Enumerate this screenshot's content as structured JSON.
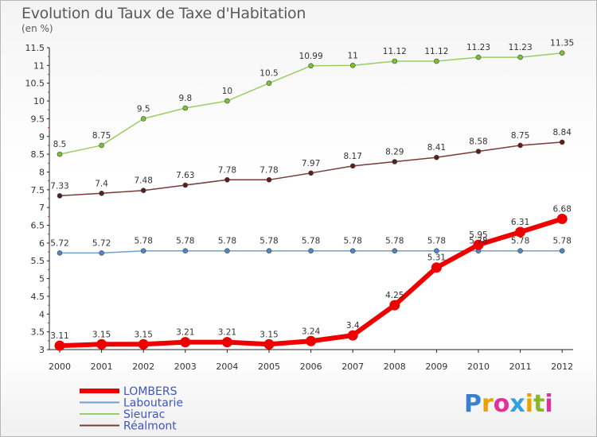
{
  "title": "Evolution du Taux de Taxe d'Habitation",
  "unit": "(en %)",
  "brand": "Proxiti",
  "chart_data": {
    "type": "line",
    "x": [
      "2000",
      "2001",
      "2002",
      "2003",
      "2004",
      "2005",
      "2006",
      "2007",
      "2008",
      "2009",
      "2010",
      "2011",
      "2012"
    ],
    "y_ticks": [
      "3",
      "3.5",
      "4",
      "4.5",
      "5",
      "5.5",
      "6",
      "6.5",
      "7",
      "7.5",
      "8",
      "8.5",
      "9",
      "9.5",
      "10",
      "10.5",
      "11",
      "11.5"
    ],
    "ylim": [
      3,
      11.5
    ],
    "grid": false,
    "legend_position": "bottom-left",
    "series": [
      {
        "name": "Sieurac",
        "color": "#9acd62",
        "marker": "#7cc035",
        "width": 1.5,
        "values": [
          8.5,
          8.75,
          9.5,
          9.8,
          10,
          10.5,
          10.99,
          11,
          11.12,
          11.12,
          11.23,
          11.23,
          11.35
        ],
        "labels": [
          "8.5",
          "8.75",
          "9.5",
          "9.8",
          "10",
          "10.5",
          "10.99",
          "11",
          "11.12",
          "11.12",
          "11.23",
          "11.23",
          "11.35"
        ]
      },
      {
        "name": "Réalmont",
        "color": "#7a3a3a",
        "marker": "#5a1f1f",
        "width": 1.5,
        "values": [
          7.33,
          7.4,
          7.48,
          7.63,
          7.78,
          7.78,
          7.97,
          8.17,
          8.29,
          8.41,
          8.58,
          8.75,
          8.84
        ],
        "labels": [
          "7.33",
          "7.4",
          "7.48",
          "7.63",
          "7.78",
          "7.78",
          "7.97",
          "8.17",
          "8.29",
          "8.41",
          "8.58",
          "8.75",
          "8.84"
        ]
      },
      {
        "name": "Laboutarie",
        "color": "#6f9fcf",
        "marker": "#4a86c8",
        "width": 1.5,
        "values": [
          5.72,
          5.72,
          5.78,
          5.78,
          5.78,
          5.78,
          5.78,
          5.78,
          5.78,
          5.78,
          5.78,
          5.78,
          5.78
        ],
        "labels": [
          "5.72",
          "5.72",
          "5.78",
          "5.78",
          "5.78",
          "5.78",
          "5.78",
          "5.78",
          "5.78",
          "5.78",
          "5.78",
          "5.78",
          "5.78"
        ]
      },
      {
        "name": "LOMBERS",
        "color": "#ee0000",
        "marker": "#ee0000",
        "width": 6,
        "values": [
          3.11,
          3.15,
          3.15,
          3.21,
          3.21,
          3.15,
          3.24,
          3.4,
          4.25,
          5.31,
          5.95,
          6.31,
          6.68
        ],
        "labels": [
          "3.11",
          "3.15",
          "3.15",
          "3.21",
          "3.21",
          "3.15",
          "3.24",
          "3.4",
          "4.25",
          "5.31",
          "5.95",
          "6.31",
          "6.68"
        ]
      }
    ],
    "legend": [
      "LOMBERS",
      "Laboutarie",
      "Sieurac",
      "Réalmont"
    ]
  }
}
